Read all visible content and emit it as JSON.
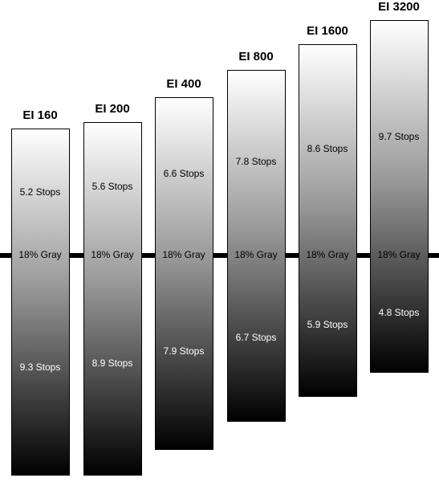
{
  "columns": [
    {
      "label": "EI 160",
      "upper": "5.2 Stops",
      "middle": "18% Gray",
      "lower": "9.3 Stops"
    },
    {
      "label": "EI 200",
      "upper": "5.6 Stops",
      "middle": "18% Gray",
      "lower": "8.9 Stops"
    },
    {
      "label": "EI 400",
      "upper": "6.6 Stops",
      "middle": "18% Gray",
      "lower": "7.9 Stops"
    },
    {
      "label": "EI 800",
      "upper": "7.8 Stops",
      "middle": "18% Gray",
      "lower": "6.7 Stops"
    },
    {
      "label": "EI 1600",
      "upper": "8.6 Stops",
      "middle": "18% Gray",
      "lower": "5.9 Stops"
    },
    {
      "label": "EI 3200",
      "upper": "9.7 Stops",
      "middle": "18% Gray",
      "lower": "4.8 Stops"
    }
  ]
}
